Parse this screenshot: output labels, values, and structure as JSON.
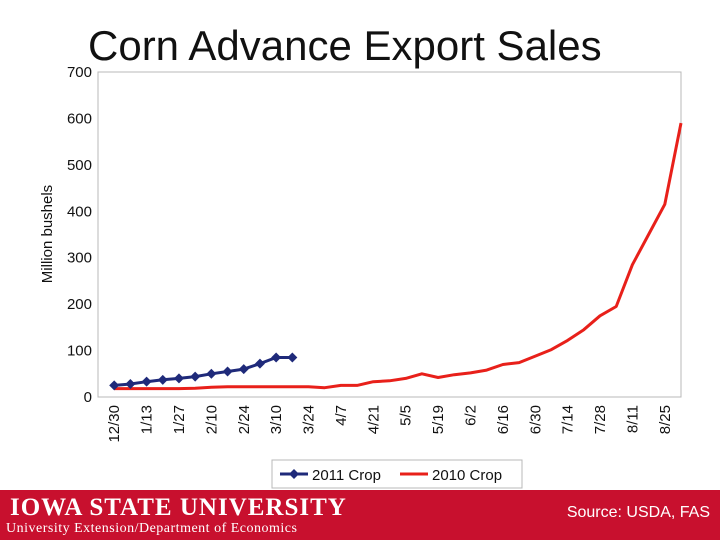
{
  "chart_data": {
    "type": "line",
    "title": "Corn Advance Export Sales",
    "xlabel": "",
    "ylabel": "Million bushels",
    "ylim": [
      0,
      700
    ],
    "yticks": [
      0,
      100,
      200,
      300,
      400,
      500,
      600,
      700
    ],
    "categories": [
      "12/30",
      "1/13",
      "1/27",
      "2/10",
      "2/24",
      "3/10",
      "3/24",
      "4/7",
      "4/21",
      "5/5",
      "5/19",
      "6/2",
      "6/16",
      "6/30",
      "7/14",
      "7/28",
      "8/11",
      "8/25"
    ],
    "series": [
      {
        "name": "2011 Crop",
        "color": "#1f2a7a",
        "marker": "diamond",
        "x": [
          0,
          0.5,
          1,
          1.5,
          2,
          2.5,
          3,
          3.5,
          4,
          4.5,
          5,
          5.5
        ],
        "values": [
          25,
          28,
          33,
          37,
          40,
          44,
          50,
          55,
          60,
          72,
          85,
          85
        ]
      },
      {
        "name": "2010 Crop",
        "color": "#e8201a",
        "marker": "none",
        "x": [
          0,
          0.5,
          1,
          1.5,
          2,
          2.5,
          3,
          3.5,
          4,
          4.5,
          5,
          5.5,
          6,
          6.5,
          7,
          7.5,
          8,
          8.5,
          9,
          9.5,
          10,
          10.5,
          11,
          11.5,
          12,
          12.5,
          13,
          13.5,
          14,
          14.5,
          15,
          15.5,
          16,
          16.5,
          17,
          17.5
        ],
        "values": [
          18,
          18,
          18,
          18,
          18,
          19,
          21,
          22,
          22,
          22,
          22,
          22,
          22,
          20,
          25,
          25,
          33,
          35,
          40,
          50,
          42,
          48,
          52,
          58,
          70,
          74,
          88,
          102,
          122,
          145,
          175,
          195,
          285,
          350,
          415,
          590
        ]
      }
    ],
    "legend": "bottom"
  },
  "footer": {
    "university": "IOWA STATE UNIVERSITY",
    "department": "University Extension/Department of Economics",
    "source": "Source: USDA, FAS"
  }
}
